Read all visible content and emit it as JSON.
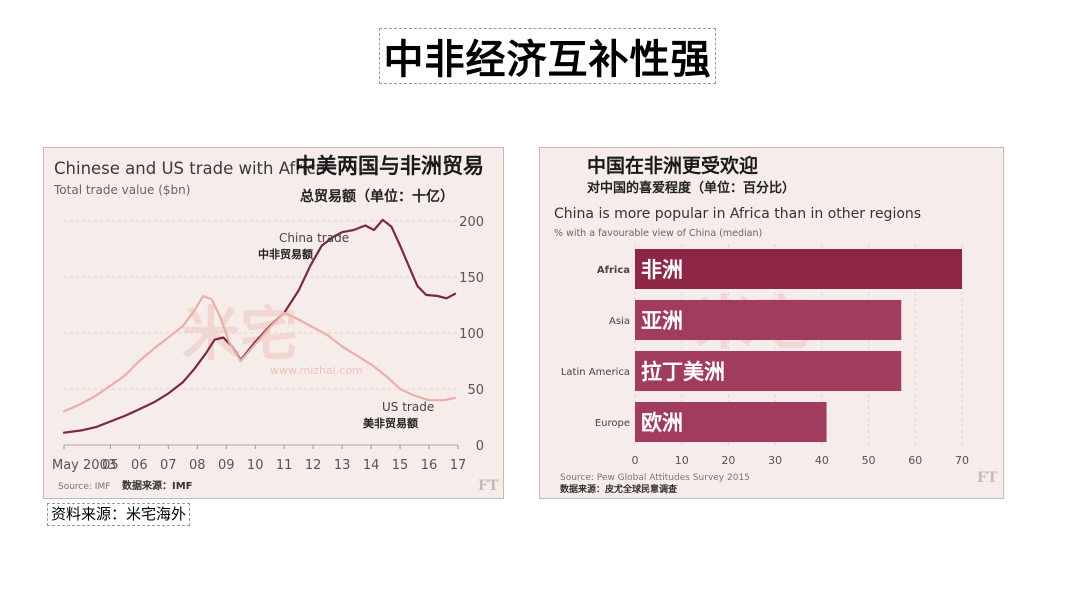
{
  "slide": {
    "title": "中非经济互补性强",
    "source_caption": "资料来源：米宅海外"
  },
  "chart_data": [
    {
      "type": "line",
      "title": "Chinese and US trade with Africa",
      "title_cn": "中美两国与非洲贸易",
      "ylabel": "Total trade value ($bn)",
      "ylabel_cn": "总贸易额（单位：十亿）",
      "x_ticks": [
        "May 2003",
        "05",
        "06",
        "07",
        "08",
        "09",
        "10",
        "11",
        "12",
        "13",
        "14",
        "15",
        "16",
        "17"
      ],
      "x_range": [
        2003.4,
        2017.0
      ],
      "y_ticks": [
        0,
        50,
        100,
        150,
        200
      ],
      "ylim": [
        0,
        200
      ],
      "grid": true,
      "series": [
        {
          "name": "China trade",
          "name_cn": "中非贸易额",
          "color": "#7a2a3e",
          "x": [
            2003.4,
            2004.0,
            2004.5,
            2005.0,
            2005.5,
            2006.0,
            2006.5,
            2007.0,
            2007.5,
            2007.9,
            2008.3,
            2008.6,
            2008.9,
            2009.2,
            2009.5,
            2010.0,
            2010.5,
            2011.0,
            2011.5,
            2011.9,
            2012.3,
            2012.7,
            2013.0,
            2013.4,
            2013.8,
            2014.1,
            2014.4,
            2014.7,
            2015.0,
            2015.3,
            2015.6,
            2015.9,
            2016.3,
            2016.6,
            2016.9
          ],
          "y": [
            11,
            13,
            16,
            21,
            26,
            32,
            38,
            46,
            56,
            68,
            82,
            94,
            96,
            88,
            76,
            92,
            106,
            118,
            138,
            160,
            178,
            186,
            190,
            192,
            196,
            192,
            201,
            195,
            178,
            160,
            142,
            134,
            133,
            131,
            135
          ]
        },
        {
          "name": "US trade",
          "name_cn": "美非贸易额",
          "color": "#e8b1a6",
          "x": [
            2003.4,
            2004.0,
            2004.5,
            2005.0,
            2005.5,
            2006.0,
            2006.5,
            2007.0,
            2007.5,
            2007.9,
            2008.2,
            2008.5,
            2008.8,
            2009.1,
            2009.5,
            2010.0,
            2010.5,
            2011.0,
            2011.5,
            2012.0,
            2012.5,
            2013.0,
            2013.5,
            2014.0,
            2014.5,
            2015.0,
            2015.5,
            2016.0,
            2016.5,
            2016.9
          ],
          "y": [
            30,
            37,
            44,
            53,
            62,
            75,
            86,
            96,
            106,
            120,
            133,
            130,
            114,
            92,
            75,
            90,
            105,
            118,
            112,
            105,
            98,
            88,
            80,
            72,
            62,
            50,
            44,
            40,
            40,
            42
          ]
        }
      ],
      "source": "Source: IMF",
      "source_cn": "数据来源：IMF",
      "watermark": "米宅",
      "watermark_url": "www.mizhai.com",
      "logo": "FT"
    },
    {
      "type": "bar",
      "orientation": "horizontal",
      "title": "China is more popular in Africa than in other regions",
      "title_cn": "中国在非洲更受欢迎",
      "subtitle": "% with a favourable view of China (median)",
      "subtitle_cn": "对中国的喜爱程度（单位：百分比）",
      "categories": [
        "Africa",
        "Asia",
        "Latin America",
        "Europe"
      ],
      "categories_cn": [
        "非洲",
        "亚洲",
        "拉丁美洲",
        "欧洲"
      ],
      "values": [
        70,
        57,
        57,
        41
      ],
      "colors": [
        "#8e2645",
        "#a23c5f",
        "#a23c5f",
        "#a23c5f"
      ],
      "x_ticks": [
        0,
        10,
        20,
        30,
        40,
        50,
        60,
        70
      ],
      "xlim": [
        0,
        70
      ],
      "grid": true,
      "source": "Source: Pew Global Attitudes Survey 2015",
      "source_cn": "数据来源：皮尤全球民意调查",
      "watermark": "米宅",
      "logo": "FT"
    }
  ]
}
